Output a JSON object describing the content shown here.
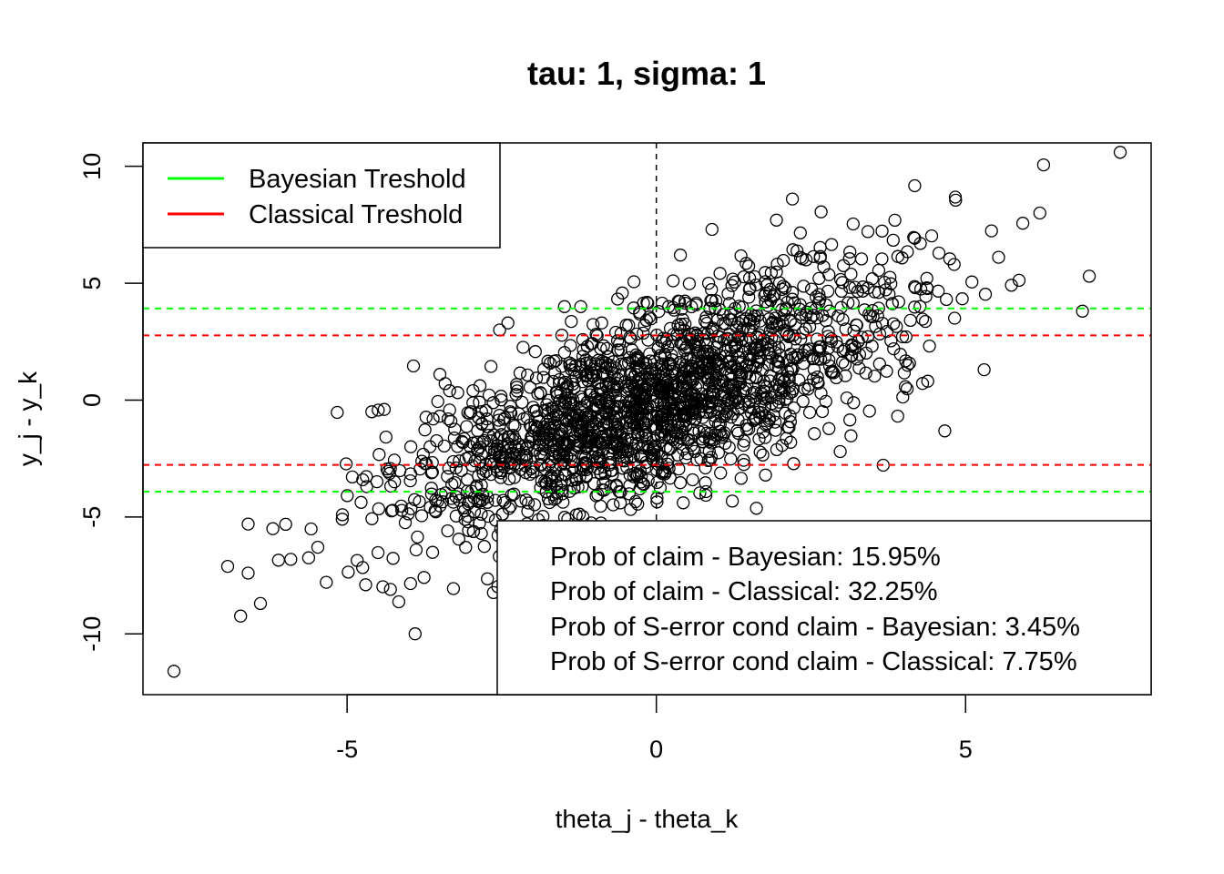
{
  "chart_data": {
    "type": "scatter",
    "title": "tau: 1, sigma: 1",
    "xlabel": "theta_j - theta_k",
    "ylabel": "y_j - y_k",
    "xlim": [
      -8.3,
      8.0
    ],
    "ylim": [
      -12.6,
      11.0
    ],
    "x_ticks": [
      -5,
      0,
      5
    ],
    "y_ticks": [
      -10,
      -5,
      0,
      5,
      10
    ],
    "x_tick_labels": [
      "-5",
      "0",
      "5"
    ],
    "y_tick_labels": [
      "-10",
      "-5",
      "0",
      "5",
      "10"
    ],
    "grid": false,
    "vertical_reference": {
      "x": 0,
      "style": "dashed",
      "color": "#000000"
    },
    "thresholds": [
      {
        "name": "Bayesian Treshold",
        "color": "#00ff00",
        "values": [
          3.92,
          -3.92
        ]
      },
      {
        "name": "Classical Treshold",
        "color": "#ff0000",
        "values": [
          2.77,
          -2.77
        ]
      }
    ],
    "legend": {
      "position": "top-left",
      "entries": [
        {
          "label": "Bayesian Treshold",
          "color": "#00ff00"
        },
        {
          "label": "Classical Treshold",
          "color": "#ff0000"
        }
      ]
    },
    "annotation_box": {
      "position": "bottom-right",
      "lines": [
        "Prob of claim - Bayesian: 15.95%",
        "Prob of claim - Classical: 32.25%",
        "Prob of S-error cond claim - Bayesian: 3.45%",
        "Prob of S-error cond claim - Classical: 7.75%"
      ]
    },
    "points": {
      "n": 2000,
      "marker": "open-circle",
      "color": "#000000",
      "model": "x ~ Normal(0, sd 2), y = x + Normal(0, sd 2)",
      "x": [
        -7.8,
        7.5,
        -3.9,
        2.2,
        6.2,
        7.0,
        -6.6,
        -6.4,
        -4.7,
        -4.3,
        -6.6,
        -6.2,
        5.3,
        0.9,
        -2.4,
        -4.4,
        -4.6,
        -3.5
      ],
      "y": [
        -11.6,
        10.6,
        -10.0,
        8.6,
        8.0,
        5.3,
        -5.3,
        -8.7,
        -7.9,
        -8.1,
        -7.4,
        -5.5,
        1.3,
        7.3,
        3.3,
        -0.4,
        -0.5,
        1.1
      ]
    }
  }
}
